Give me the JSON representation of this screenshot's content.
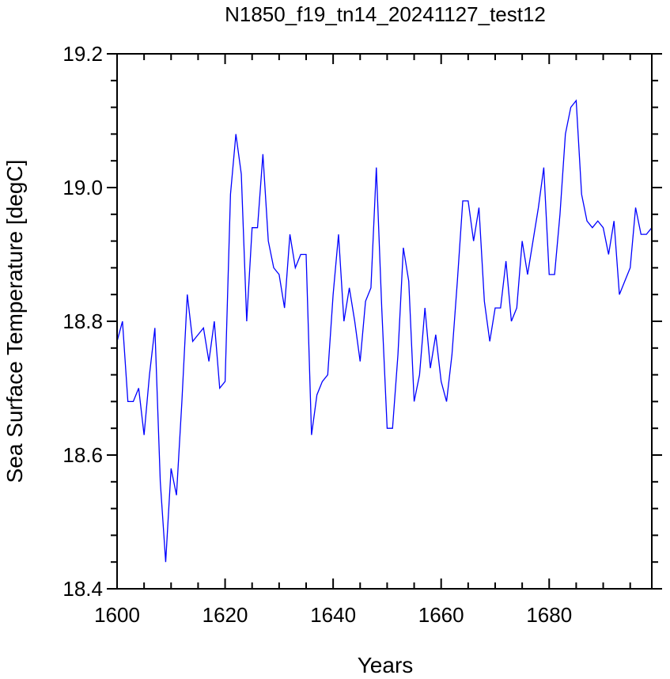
{
  "chart_data": {
    "type": "line",
    "title": "N1850_f19_tn14_20241127_test12",
    "xlabel": "Years",
    "ylabel": "Sea Surface Temperature [degC]",
    "xlim": [
      1600,
      1699
    ],
    "ylim": [
      18.4,
      19.2
    ],
    "x_ticks": [
      "1600",
      "1620",
      "1640",
      "1660",
      "1680"
    ],
    "y_ticks": [
      "18.4",
      "18.6",
      "18.8",
      "19.0",
      "19.2"
    ],
    "grid": false,
    "line_color": "#0000ff",
    "x": [
      1600,
      1601,
      1602,
      1603,
      1604,
      1605,
      1606,
      1607,
      1608,
      1609,
      1610,
      1611,
      1612,
      1613,
      1614,
      1615,
      1616,
      1617,
      1618,
      1619,
      1620,
      1621,
      1622,
      1623,
      1624,
      1625,
      1626,
      1627,
      1628,
      1629,
      1630,
      1631,
      1632,
      1633,
      1634,
      1635,
      1636,
      1637,
      1638,
      1639,
      1640,
      1641,
      1642,
      1643,
      1644,
      1645,
      1646,
      1647,
      1648,
      1649,
      1650,
      1651,
      1652,
      1653,
      1654,
      1655,
      1656,
      1657,
      1658,
      1659,
      1660,
      1661,
      1662,
      1663,
      1664,
      1665,
      1666,
      1667,
      1668,
      1669,
      1670,
      1671,
      1672,
      1673,
      1674,
      1675,
      1676,
      1677,
      1678,
      1679,
      1680,
      1681,
      1682,
      1683,
      1684,
      1685,
      1686,
      1687,
      1688,
      1689,
      1690,
      1691,
      1692,
      1693,
      1694,
      1695,
      1696,
      1697,
      1698,
      1699
    ],
    "y": [
      18.77,
      18.8,
      18.68,
      18.68,
      18.7,
      18.63,
      18.72,
      18.79,
      18.56,
      18.44,
      18.58,
      18.54,
      18.68,
      18.84,
      18.77,
      18.78,
      18.79,
      18.74,
      18.8,
      18.7,
      18.71,
      18.99,
      19.08,
      19.02,
      18.8,
      18.94,
      18.94,
      19.05,
      18.92,
      18.88,
      18.87,
      18.82,
      18.93,
      18.88,
      18.9,
      18.9,
      18.63,
      18.69,
      18.71,
      18.72,
      18.84,
      18.93,
      18.8,
      18.85,
      18.8,
      18.74,
      18.83,
      18.85,
      19.03,
      18.82,
      18.64,
      18.64,
      18.75,
      18.91,
      18.86,
      18.68,
      18.72,
      18.82,
      18.73,
      18.78,
      18.71,
      18.68,
      18.75,
      18.86,
      18.98,
      18.98,
      18.92,
      18.97,
      18.83,
      18.77,
      18.82,
      18.82,
      18.89,
      18.8,
      18.82,
      18.92,
      18.87,
      18.92,
      18.97,
      19.03,
      18.87,
      18.87,
      18.96,
      19.08,
      19.12,
      19.13,
      18.99,
      18.95,
      18.94,
      18.95,
      18.94,
      18.9,
      18.95,
      18.84,
      18.86,
      18.88,
      18.97,
      18.93,
      18.93,
      18.94
    ]
  }
}
